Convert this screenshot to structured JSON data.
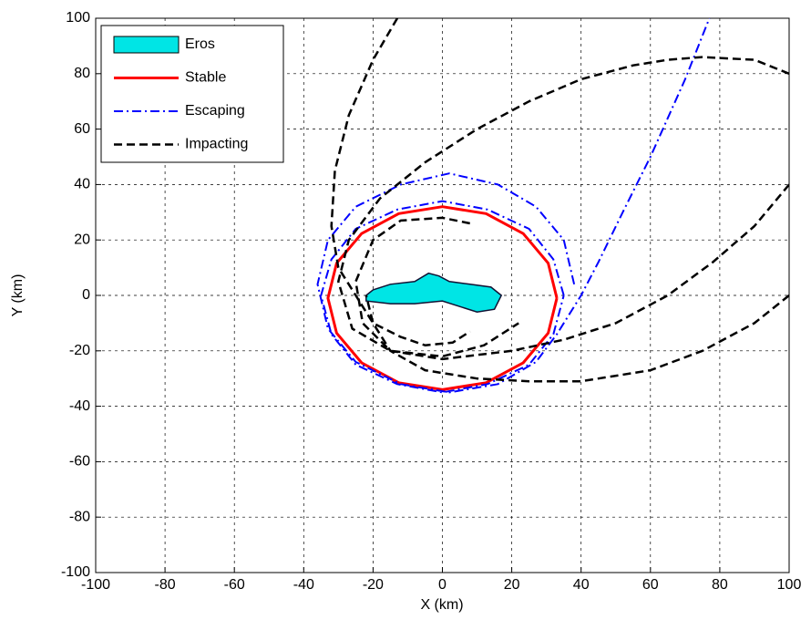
{
  "chart_data": {
    "type": "line",
    "x_label": "X (km)",
    "y_label": "Y (km)",
    "xlim": [
      -100,
      100
    ],
    "ylim": [
      -100,
      100
    ],
    "xticks": [
      -100,
      -80,
      -60,
      -40,
      -20,
      0,
      20,
      40,
      60,
      80,
      100
    ],
    "yticks": [
      -100,
      -80,
      -60,
      -40,
      -20,
      0,
      20,
      40,
      60,
      80,
      100
    ],
    "grid": true,
    "legend": "upper left",
    "series": [
      {
        "name": "Eros",
        "kind": "patch",
        "color": "#00e5e5",
        "x": [
          -22,
          -20,
          -15,
          -8,
          -4,
          -1,
          2,
          8,
          14,
          17,
          15,
          10,
          5,
          0,
          -8,
          -15,
          -22
        ],
        "y": [
          0,
          2,
          4,
          5,
          8,
          7,
          5,
          4,
          3,
          0,
          -5,
          -6,
          -4,
          -2,
          -3,
          -3,
          -2
        ]
      },
      {
        "name": "Stable",
        "kind": "solid",
        "color": "#ff0000",
        "x": [
          33,
          30.5,
          23.3,
          12.6,
          0,
          -12.6,
          -23.3,
          -30.5,
          -33,
          -30.5,
          -23.3,
          -12.6,
          0,
          12.6,
          23.3,
          30.5,
          33
        ],
        "y": [
          -1,
          11.6,
          22.3,
          29.5,
          32,
          29.5,
          22.3,
          11.6,
          -1,
          -13.6,
          -24.3,
          -31.5,
          -34,
          -31.5,
          -24.3,
          -13.6,
          -1
        ]
      },
      {
        "name": "Escaping",
        "kind": "dashdot",
        "color": "#0000ff",
        "x": [
          35,
          32,
          25,
          13,
          0,
          -13,
          -25,
          -32,
          -35,
          -32,
          -25,
          -13,
          0,
          13,
          25,
          32,
          35,
          null,
          38,
          35,
          27,
          16,
          2,
          -12,
          -25,
          -33,
          -36,
          -33,
          -25,
          -12,
          2,
          16,
          27,
          33,
          40,
          45,
          52,
          60,
          70,
          77
        ],
        "y": [
          0,
          13,
          24,
          31,
          34,
          31,
          24,
          13,
          0,
          -14,
          -25,
          -32,
          -35,
          -32,
          -25,
          -14,
          0,
          null,
          4,
          20,
          32,
          40,
          44,
          40,
          32,
          20,
          4,
          -12,
          -24,
          -32,
          -35,
          -32,
          -24,
          -14,
          0,
          12,
          30,
          50,
          78,
          100
        ]
      },
      {
        "name": "Impacting",
        "kind": "dashed",
        "color": "#000000",
        "x": [
          -13,
          -20,
          -27,
          -31,
          -32,
          -30,
          -25,
          -20,
          -12,
          -5,
          3,
          8,
          null,
          100,
          90,
          75,
          65,
          55,
          40,
          25,
          10,
          -5,
          -18,
          -27,
          -30,
          -26,
          -15,
          0,
          12,
          22,
          null,
          100,
          90,
          78,
          65,
          50,
          35,
          20,
          0,
          -15,
          -23,
          -25,
          -20,
          -12,
          0,
          8,
          null,
          100,
          90,
          75,
          60,
          40,
          25,
          10,
          -5,
          -15,
          -20,
          -22
        ],
        "y": [
          100,
          85,
          65,
          45,
          25,
          10,
          0,
          -10,
          -15,
          -18,
          -17,
          -13,
          null,
          80,
          85,
          86,
          85,
          83,
          78,
          70,
          60,
          48,
          35,
          20,
          5,
          -12,
          -20,
          -22,
          -18,
          -10,
          null,
          40,
          25,
          12,
          0,
          -10,
          -16,
          -20,
          -23,
          -20,
          -10,
          5,
          20,
          27,
          28,
          26,
          null,
          0,
          -10,
          -20,
          -27,
          -31,
          -31,
          -30,
          -27,
          -20,
          -10,
          0
        ]
      }
    ]
  }
}
